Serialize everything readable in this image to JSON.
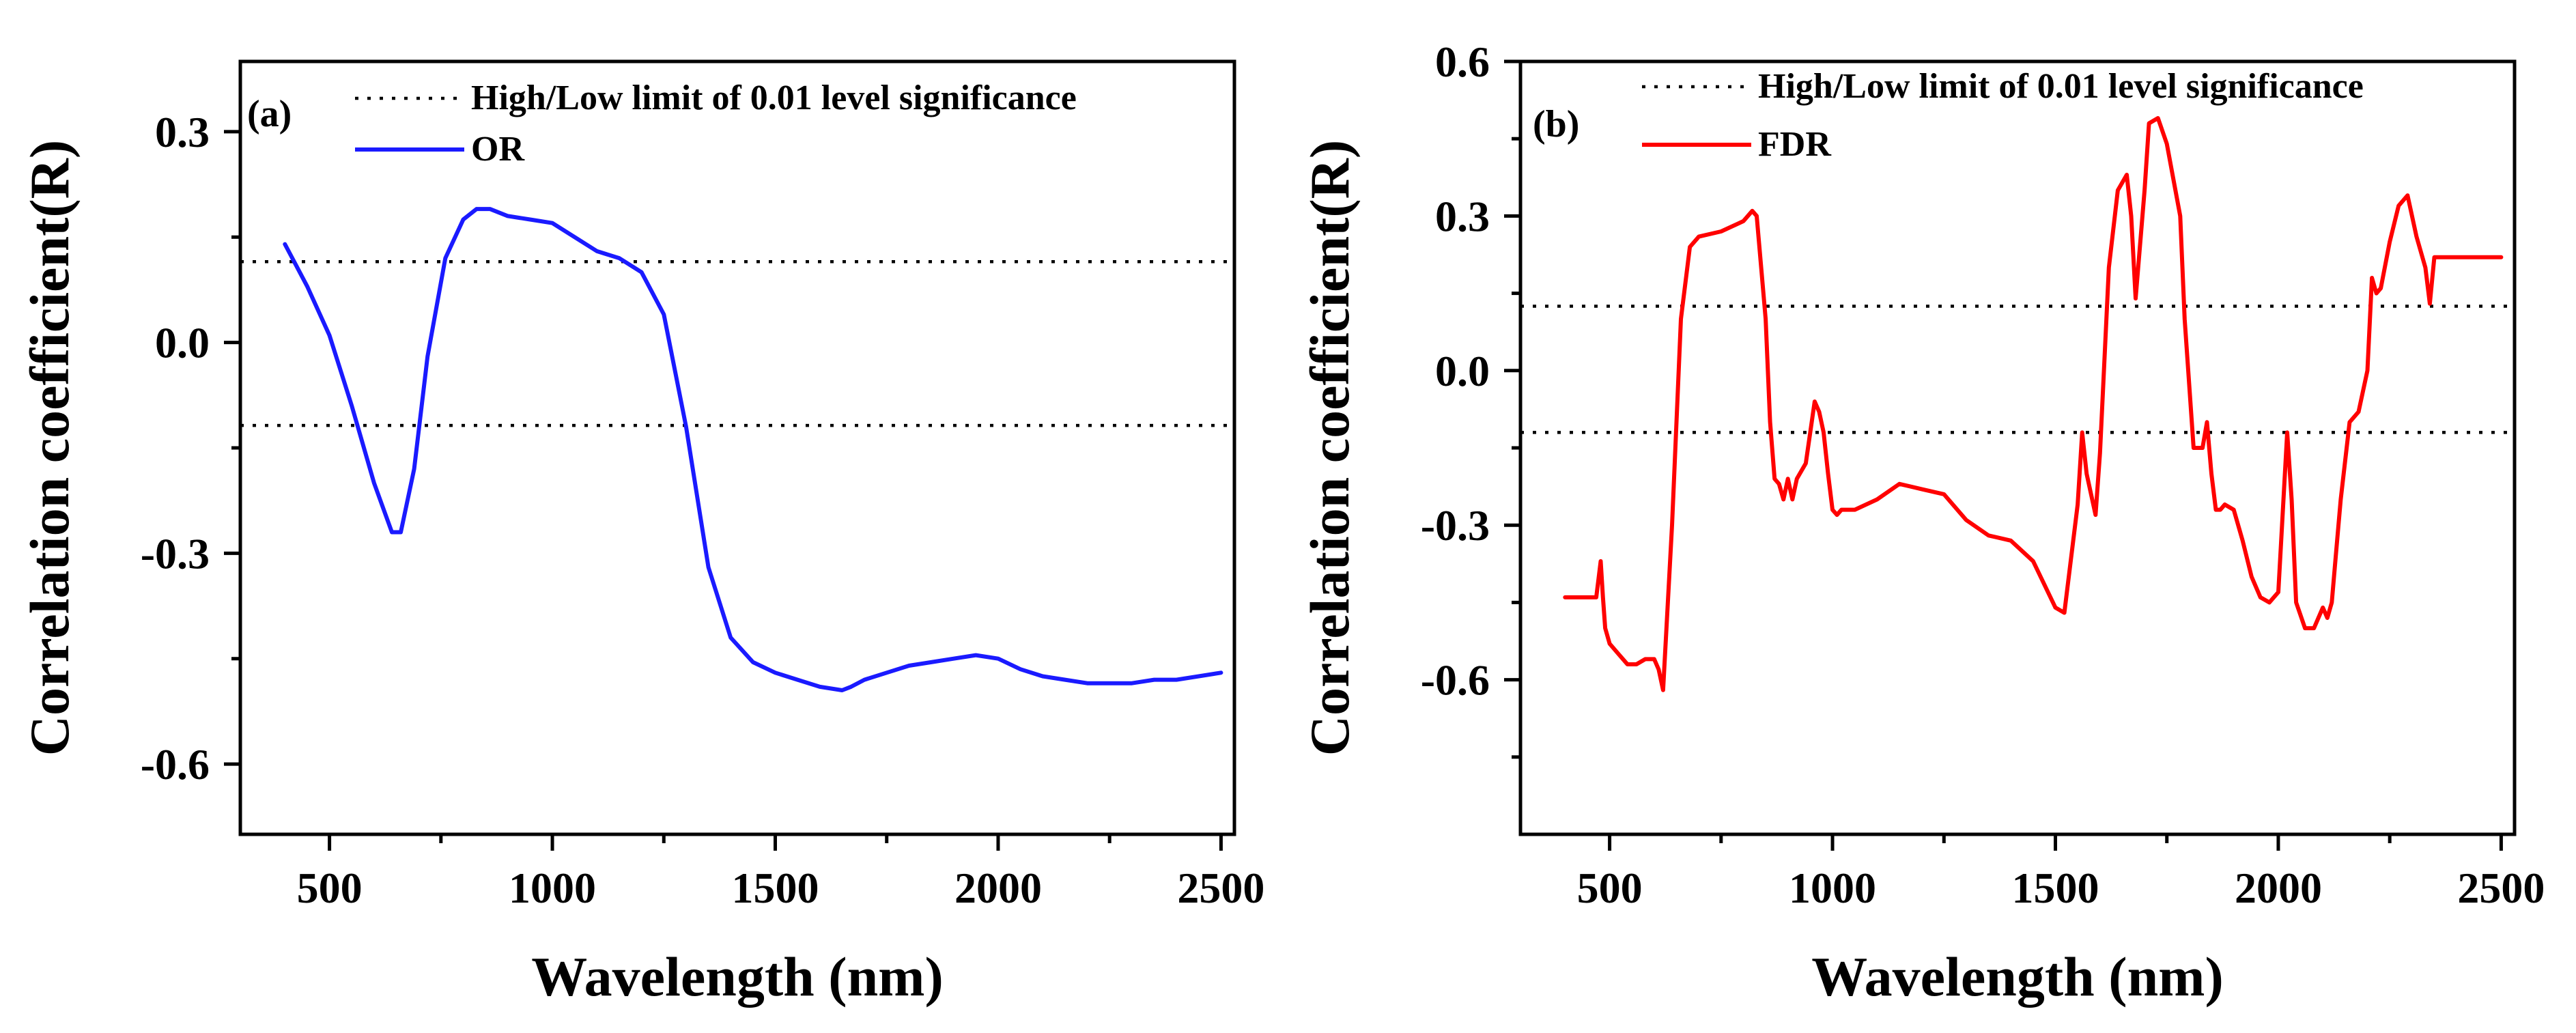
{
  "chart_data": [
    {
      "type": "line",
      "panel_label": "(a)",
      "xlabel": "Wavelength (nm)",
      "ylabel": "Correlation coefficient(R)",
      "xlim": [
        300,
        2530
      ],
      "ylim": [
        -0.7,
        0.4
      ],
      "x_ticks": [
        500,
        1000,
        1500,
        2000,
        2500
      ],
      "y_ticks": [
        0.3,
        0.0,
        -0.3,
        -0.6
      ],
      "y_minor_ticks": [
        0.15,
        -0.15,
        -0.45
      ],
      "x_tick_labels": [
        "500",
        "1000",
        "1500",
        "2000",
        "2500"
      ],
      "y_tick_labels": [
        "0.3",
        "0.0",
        "-0.3",
        "-0.6"
      ],
      "legend": {
        "placement": "top",
        "significance_label": "High/Low limit of 0.01 level significance",
        "series_label": "OR"
      },
      "significance_limits": [
        0.115,
        -0.118
      ],
      "series": [
        {
          "name": "OR",
          "color": "#1a1aff",
          "x": [
            400,
            450,
            500,
            550,
            600,
            640,
            660,
            690,
            720,
            760,
            800,
            830,
            860,
            900,
            950,
            1000,
            1050,
            1100,
            1150,
            1200,
            1250,
            1300,
            1350,
            1400,
            1450,
            1500,
            1550,
            1600,
            1650,
            1670,
            1700,
            1750,
            1800,
            1850,
            1900,
            1950,
            2000,
            2050,
            2100,
            2150,
            2200,
            2250,
            2300,
            2350,
            2400,
            2450,
            2500
          ],
          "y": [
            0.14,
            0.08,
            0.01,
            -0.09,
            -0.2,
            -0.27,
            -0.27,
            -0.18,
            -0.02,
            0.12,
            0.175,
            0.19,
            0.19,
            0.18,
            0.175,
            0.17,
            0.15,
            0.13,
            0.12,
            0.1,
            0.04,
            -0.12,
            -0.32,
            -0.42,
            -0.455,
            -0.47,
            -0.48,
            -0.49,
            -0.495,
            -0.49,
            -0.48,
            -0.47,
            -0.46,
            -0.455,
            -0.45,
            -0.445,
            -0.45,
            -0.465,
            -0.475,
            -0.48,
            -0.485,
            -0.485,
            -0.485,
            -0.48,
            -0.48,
            -0.475,
            -0.47
          ]
        }
      ]
    },
    {
      "type": "line",
      "panel_label": "(b)",
      "xlabel": "Wavelength (nm)",
      "ylabel": "Correlation coefficient(R)",
      "xlim": [
        300,
        2530
      ],
      "ylim": [
        -0.9,
        0.6
      ],
      "x_ticks": [
        500,
        1000,
        1500,
        2000,
        2500
      ],
      "y_ticks": [
        0.6,
        0.3,
        0.0,
        -0.3,
        -0.6
      ],
      "y_minor_ticks": [
        0.45,
        0.15,
        -0.15,
        -0.45,
        -0.75
      ],
      "x_tick_labels": [
        "500",
        "1000",
        "1500",
        "2000",
        "2500"
      ],
      "y_tick_labels": [
        "0.6",
        "0.3",
        "0.0",
        "-0.3",
        "-0.6"
      ],
      "legend": {
        "placement": "top",
        "significance_label": "High/Low limit of 0.01 level significance",
        "series_label": "FDR"
      },
      "significance_limits": [
        0.125,
        -0.12
      ],
      "series": [
        {
          "name": "FDR",
          "color": "#ff0000",
          "x": [
            400,
            470,
            480,
            485,
            490,
            500,
            520,
            540,
            560,
            580,
            600,
            610,
            620,
            640,
            660,
            680,
            700,
            750,
            800,
            820,
            830,
            850,
            860,
            870,
            880,
            890,
            900,
            910,
            920,
            940,
            960,
            970,
            980,
            990,
            1000,
            1010,
            1020,
            1050,
            1100,
            1150,
            1200,
            1250,
            1300,
            1350,
            1400,
            1450,
            1500,
            1520,
            1550,
            1560,
            1570,
            1590,
            1600,
            1620,
            1640,
            1660,
            1670,
            1680,
            1700,
            1710,
            1730,
            1750,
            1780,
            1790,
            1810,
            1830,
            1840,
            1850,
            1860,
            1870,
            1880,
            1900,
            1920,
            1940,
            1960,
            1980,
            2000,
            2020,
            2030,
            2040,
            2060,
            2080,
            2100,
            2110,
            2120,
            2130,
            2140,
            2160,
            2180,
            2200,
            2210,
            2220,
            2230,
            2250,
            2270,
            2290,
            2310,
            2330,
            2340,
            2350,
            2400,
            2450,
            2500
          ],
          "y": [
            -0.44,
            -0.44,
            -0.37,
            -0.44,
            -0.5,
            -0.53,
            -0.55,
            -0.57,
            -0.57,
            -0.56,
            -0.56,
            -0.58,
            -0.62,
            -0.3,
            0.1,
            0.24,
            0.26,
            0.27,
            0.29,
            0.31,
            0.3,
            0.1,
            -0.1,
            -0.21,
            -0.22,
            -0.25,
            -0.21,
            -0.25,
            -0.21,
            -0.18,
            -0.06,
            -0.08,
            -0.12,
            -0.2,
            -0.27,
            -0.28,
            -0.27,
            -0.27,
            -0.25,
            -0.22,
            -0.23,
            -0.24,
            -0.29,
            -0.32,
            -0.33,
            -0.37,
            -0.46,
            -0.47,
            -0.26,
            -0.12,
            -0.2,
            -0.28,
            -0.16,
            0.2,
            0.35,
            0.38,
            0.3,
            0.14,
            0.35,
            0.48,
            0.49,
            0.44,
            0.3,
            0.1,
            -0.15,
            -0.15,
            -0.1,
            -0.2,
            -0.27,
            -0.27,
            -0.26,
            -0.27,
            -0.33,
            -0.4,
            -0.44,
            -0.45,
            -0.43,
            -0.12,
            -0.25,
            -0.45,
            -0.5,
            -0.5,
            -0.46,
            -0.48,
            -0.45,
            -0.35,
            -0.25,
            -0.1,
            -0.08,
            0.0,
            0.18,
            0.15,
            0.16,
            0.25,
            0.32,
            0.34,
            0.26,
            0.2,
            0.13,
            0.22,
            0.22,
            0.22,
            0.22
          ]
        }
      ]
    }
  ]
}
